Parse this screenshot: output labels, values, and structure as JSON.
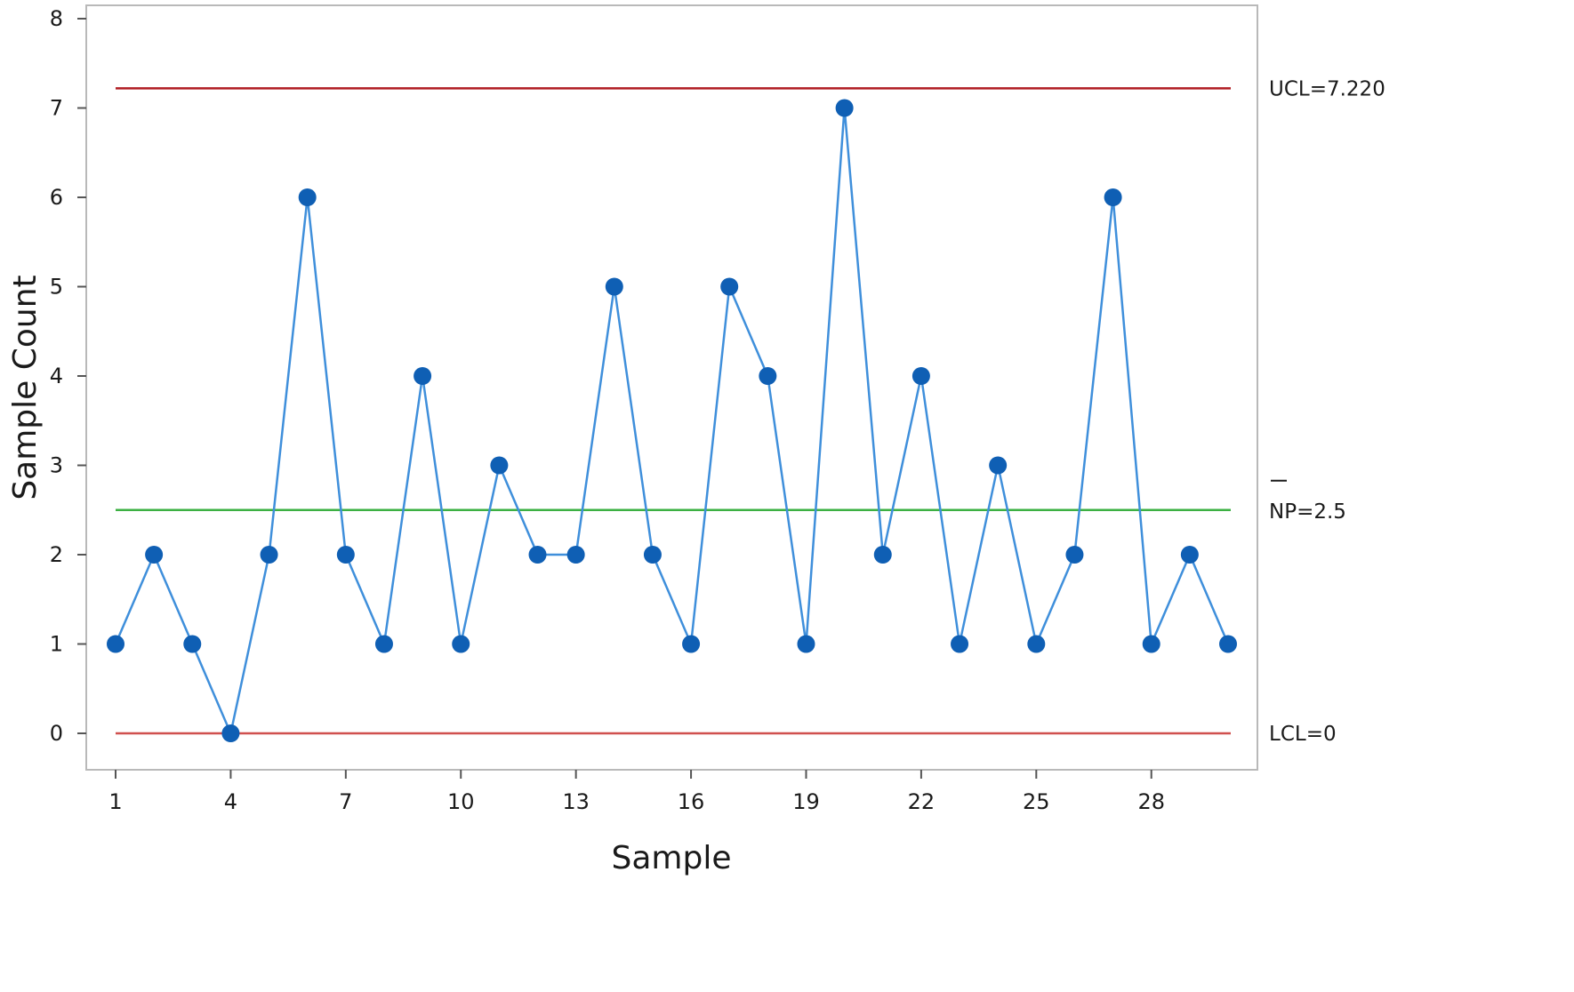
{
  "chart_data": {
    "type": "line",
    "title": "",
    "xlabel": "Sample",
    "ylabel": "Sample Count",
    "x": [
      1,
      2,
      3,
      4,
      5,
      6,
      7,
      8,
      9,
      10,
      11,
      12,
      13,
      14,
      15,
      16,
      17,
      18,
      19,
      20,
      21,
      22,
      23,
      24,
      25,
      26,
      27,
      28,
      29,
      30
    ],
    "values": [
      1,
      2,
      1,
      0,
      2,
      6,
      2,
      1,
      4,
      1,
      3,
      2,
      2,
      5,
      2,
      1,
      5,
      4,
      1,
      7,
      2,
      4,
      1,
      3,
      1,
      2,
      6,
      1,
      2,
      1
    ],
    "xticks": [
      "1",
      "4",
      "7",
      "10",
      "13",
      "16",
      "19",
      "22",
      "25",
      "28"
    ],
    "xtick_values": [
      1,
      4,
      7,
      10,
      13,
      16,
      19,
      22,
      25,
      28
    ],
    "yticks": [
      "0",
      "1",
      "2",
      "3",
      "4",
      "5",
      "6",
      "7",
      "8"
    ],
    "ylim": [
      -0.4,
      8
    ],
    "xlim": [
      0.2,
      30.9
    ],
    "grid": false,
    "reference_lines": [
      {
        "name": "UCL",
        "value": 7.22,
        "label": "UCL=7.220",
        "color": "#b01c22"
      },
      {
        "name": "center",
        "value": 2.5,
        "label": "NP=2.5",
        "color": "#3cb043"
      },
      {
        "name": "LCL",
        "value": 0,
        "label": "LCL=0",
        "color": "#d0504e"
      }
    ],
    "series_color": "#0f5fb4",
    "line_color": "#3f8fdb"
  }
}
